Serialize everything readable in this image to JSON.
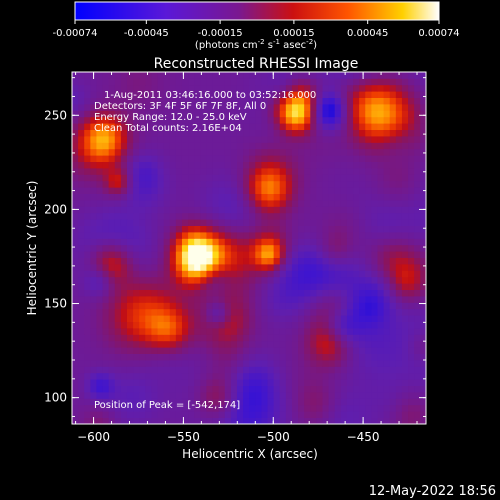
{
  "colorbar": {
    "tick_labels": [
      "-0.00074",
      "-0.00045",
      "-0.00015",
      "0.00015",
      "0.00045",
      "0.00074"
    ],
    "range": [
      -0.00074,
      0.00074
    ],
    "units_prefix": "(photons cm",
    "units_exp1": "-2",
    "units_mid": " s",
    "units_exp2": "-1",
    "units_mid2": " asec",
    "units_exp3": "-2",
    "units_suffix": ")"
  },
  "chart_data": {
    "type": "heatmap",
    "title": "Reconstructed RHESSI Image",
    "xlabel": "Heliocentric X (arcsec)",
    "ylabel": "Heliocentric Y (arcsec)",
    "xlim": [
      -612,
      -415
    ],
    "ylim": [
      86,
      273
    ],
    "x_ticks": [
      -600,
      -550,
      -500,
      -450
    ],
    "y_ticks": [
      100,
      150,
      200,
      250
    ],
    "x_tick_labels": [
      "−600",
      "−550",
      "−500",
      "−450"
    ],
    "y_tick_labels": [
      "100",
      "150",
      "200",
      "250"
    ],
    "colormap": "rhessi-blue-purple-red-yellow-white",
    "peak": [
      -542,
      174
    ],
    "bright_sources": [
      {
        "x": -542,
        "y": 174,
        "level": 1.0
      },
      {
        "x": -488,
        "y": 257,
        "level": 0.85
      },
      {
        "x": -594,
        "y": 238,
        "level": 0.6
      },
      {
        "x": -590,
        "y": 172,
        "level": 0.65
      },
      {
        "x": -503,
        "y": 210,
        "level": 0.55
      },
      {
        "x": -558,
        "y": 135,
        "level": 0.5
      },
      {
        "x": -468,
        "y": 130,
        "level": 0.45
      },
      {
        "x": -530,
        "y": 100,
        "level": 0.45
      }
    ],
    "annotations": [
      "1-Aug-2011 03:46:16.000 to 03:52:16.000",
      "Detectors: 3F 4F 5F 6F 7F 8F, All 0",
      "Energy Range: 12.0 - 25.0 keV",
      "Clean     Total counts: 2.16E+04",
      "Position of Peak = [-542,174]"
    ]
  },
  "footer": {
    "timestamp": "12-May-2022 18:56"
  },
  "colors": {
    "background": "#000000",
    "text": "#ffffff"
  }
}
